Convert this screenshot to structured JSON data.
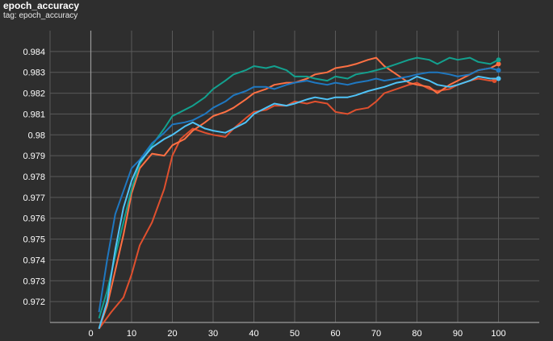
{
  "header": {
    "title": "epoch_accuracy",
    "tag": "tag: epoch_accuracy"
  },
  "chart_data": {
    "type": "line",
    "title": "epoch_accuracy",
    "subtitle": "tag: epoch_accuracy",
    "xlabel": "",
    "ylabel": "",
    "xlim": [
      -10,
      110
    ],
    "ylim": [
      0.971,
      0.985
    ],
    "x_ticks": [
      0,
      10,
      20,
      30,
      40,
      50,
      60,
      70,
      80,
      90,
      100
    ],
    "y_ticks": [
      0.972,
      0.973,
      0.974,
      0.975,
      0.976,
      0.977,
      0.978,
      0.979,
      0.98,
      0.981,
      0.982,
      0.983,
      0.984
    ],
    "y_tick_labels": [
      "0.972",
      "0.973",
      "0.974",
      "0.975",
      "0.976",
      "0.977",
      "0.978",
      "0.979",
      "0.98",
      "0.981",
      "0.982",
      "0.983",
      "0.984"
    ],
    "grid": true,
    "background": "#2e2e2e",
    "grid_color": "#5a5a5a",
    "series": [
      {
        "color": "#e0502e",
        "x": [
          2,
          5,
          8,
          10,
          12,
          15,
          18,
          20,
          22,
          25,
          28,
          30,
          33,
          35,
          38,
          40,
          43,
          45,
          48,
          50,
          53,
          55,
          58,
          60,
          63,
          65,
          68,
          70,
          72,
          75,
          78,
          80,
          83,
          85,
          88,
          90,
          93,
          95,
          98,
          99
        ],
        "y": [
          0.9705,
          0.9715,
          0.9722,
          0.9733,
          0.9747,
          0.9758,
          0.9774,
          0.979,
          0.9798,
          0.9803,
          0.9801,
          0.98,
          0.9799,
          0.9803,
          0.9808,
          0.9811,
          0.9812,
          0.9814,
          0.9814,
          0.9816,
          0.9815,
          0.9816,
          0.9815,
          0.9811,
          0.981,
          0.9812,
          0.9813,
          0.9816,
          0.982,
          0.9822,
          0.9824,
          0.9825,
          0.9822,
          0.9821,
          0.9822,
          0.9824,
          0.9826,
          0.9827,
          0.9826,
          0.9826
        ]
      },
      {
        "color": "#ff7043",
        "x": [
          2,
          4,
          6,
          8,
          10,
          12,
          15,
          18,
          20,
          23,
          25,
          28,
          30,
          33,
          35,
          38,
          40,
          43,
          45,
          48,
          50,
          53,
          55,
          58,
          60,
          63,
          65,
          68,
          70,
          72,
          75,
          78,
          80,
          83,
          85,
          88,
          90,
          93,
          95,
          98,
          100
        ],
        "y": [
          0.9705,
          0.9718,
          0.9735,
          0.9752,
          0.9772,
          0.9784,
          0.9791,
          0.979,
          0.9795,
          0.9798,
          0.9802,
          0.9806,
          0.9809,
          0.9811,
          0.9813,
          0.9817,
          0.982,
          0.9822,
          0.9824,
          0.9825,
          0.9825,
          0.9827,
          0.9829,
          0.983,
          0.9832,
          0.9833,
          0.9834,
          0.9836,
          0.9837,
          0.9833,
          0.9829,
          0.9825,
          0.9824,
          0.9823,
          0.982,
          0.9824,
          0.9826,
          0.9829,
          0.9831,
          0.9832,
          0.9834
        ]
      },
      {
        "color": "#13a18f",
        "x": [
          2,
          4,
          6,
          8,
          10,
          12,
          15,
          18,
          20,
          23,
          25,
          28,
          30,
          33,
          35,
          38,
          40,
          43,
          45,
          48,
          50,
          53,
          55,
          58,
          60,
          63,
          65,
          68,
          70,
          72,
          75,
          78,
          80,
          83,
          85,
          88,
          90,
          93,
          95,
          98,
          100
        ],
        "y": [
          0.9712,
          0.9725,
          0.9742,
          0.9758,
          0.9774,
          0.9786,
          0.9795,
          0.9803,
          0.9809,
          0.9812,
          0.9814,
          0.9818,
          0.9822,
          0.9826,
          0.9829,
          0.9831,
          0.9833,
          0.9832,
          0.9833,
          0.9831,
          0.9828,
          0.9828,
          0.9827,
          0.9826,
          0.9828,
          0.9827,
          0.9829,
          0.983,
          0.9831,
          0.9832,
          0.9834,
          0.9836,
          0.9837,
          0.9836,
          0.9834,
          0.9837,
          0.9836,
          0.9837,
          0.9835,
          0.9834,
          0.9836
        ]
      },
      {
        "color": "#1f78c1",
        "x": [
          2,
          4,
          6,
          8,
          10,
          12,
          15,
          18,
          20,
          23,
          25,
          28,
          30,
          33,
          35,
          38,
          40,
          43,
          45,
          48,
          50,
          53,
          55,
          58,
          60,
          63,
          65,
          68,
          70,
          72,
          75,
          78,
          80,
          83,
          85,
          88,
          90,
          93,
          95,
          98,
          100
        ],
        "y": [
          0.9715,
          0.974,
          0.9762,
          0.9773,
          0.9784,
          0.9788,
          0.9796,
          0.9801,
          0.9805,
          0.9806,
          0.9807,
          0.981,
          0.9813,
          0.9816,
          0.9819,
          0.9821,
          0.9823,
          0.9823,
          0.9822,
          0.9824,
          0.9825,
          0.9826,
          0.9825,
          0.9824,
          0.9825,
          0.9824,
          0.9825,
          0.9826,
          0.9827,
          0.9826,
          0.9827,
          0.9828,
          0.9829,
          0.983,
          0.983,
          0.9829,
          0.9828,
          0.9829,
          0.9831,
          0.9832,
          0.9831
        ]
      },
      {
        "color": "#4fc3f7",
        "x": [
          2,
          4,
          6,
          8,
          10,
          12,
          15,
          18,
          20,
          23,
          25,
          28,
          30,
          33,
          35,
          38,
          40,
          43,
          45,
          48,
          50,
          53,
          55,
          58,
          60,
          63,
          65,
          68,
          70,
          72,
          75,
          78,
          80,
          83,
          85,
          88,
          90,
          93,
          95,
          98,
          100
        ],
        "y": [
          0.9705,
          0.972,
          0.9745,
          0.9765,
          0.9778,
          0.9787,
          0.9794,
          0.9798,
          0.98,
          0.9804,
          0.9806,
          0.9803,
          0.9802,
          0.9801,
          0.9803,
          0.9806,
          0.981,
          0.9813,
          0.9815,
          0.9814,
          0.9815,
          0.9817,
          0.9818,
          0.9817,
          0.9818,
          0.9818,
          0.9819,
          0.9821,
          0.9822,
          0.9823,
          0.9825,
          0.9826,
          0.9828,
          0.9826,
          0.9824,
          0.9823,
          0.9824,
          0.9826,
          0.9828,
          0.9827,
          0.9827
        ]
      }
    ]
  }
}
